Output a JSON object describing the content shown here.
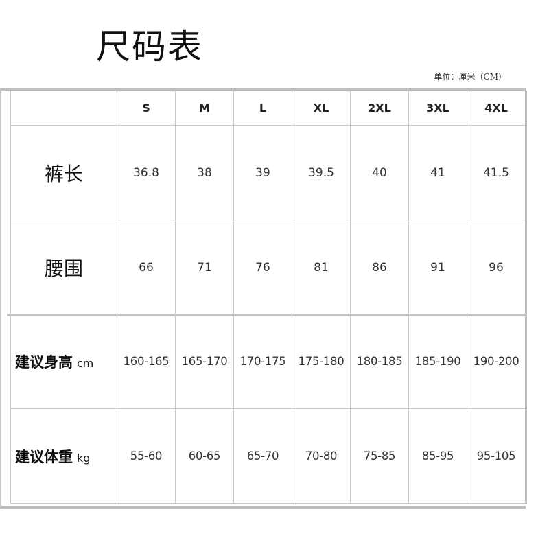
{
  "title": "尺码表",
  "unit_note": "单位：厘米（CM）",
  "sizes": [
    "S",
    "M",
    "L",
    "XL",
    "2XL",
    "3XL",
    "4XL"
  ],
  "rows": [
    {
      "label": "裤长",
      "unit": "",
      "values": [
        "36.8",
        "38",
        "39",
        "39.5",
        "40",
        "41",
        "41.5"
      ]
    },
    {
      "label": "腰围",
      "unit": "",
      "values": [
        "66",
        "71",
        "76",
        "81",
        "86",
        "91",
        "96"
      ]
    },
    {
      "label": "建议身高",
      "unit": "cm",
      "values": [
        "160-165",
        "165-170",
        "170-175",
        "175-180",
        "180-185",
        "185-190",
        "190-200"
      ]
    },
    {
      "label": "建议体重",
      "unit": "kg",
      "values": [
        "55-60",
        "60-65",
        "65-70",
        "70-80",
        "75-85",
        "85-95",
        "95-105"
      ]
    }
  ]
}
